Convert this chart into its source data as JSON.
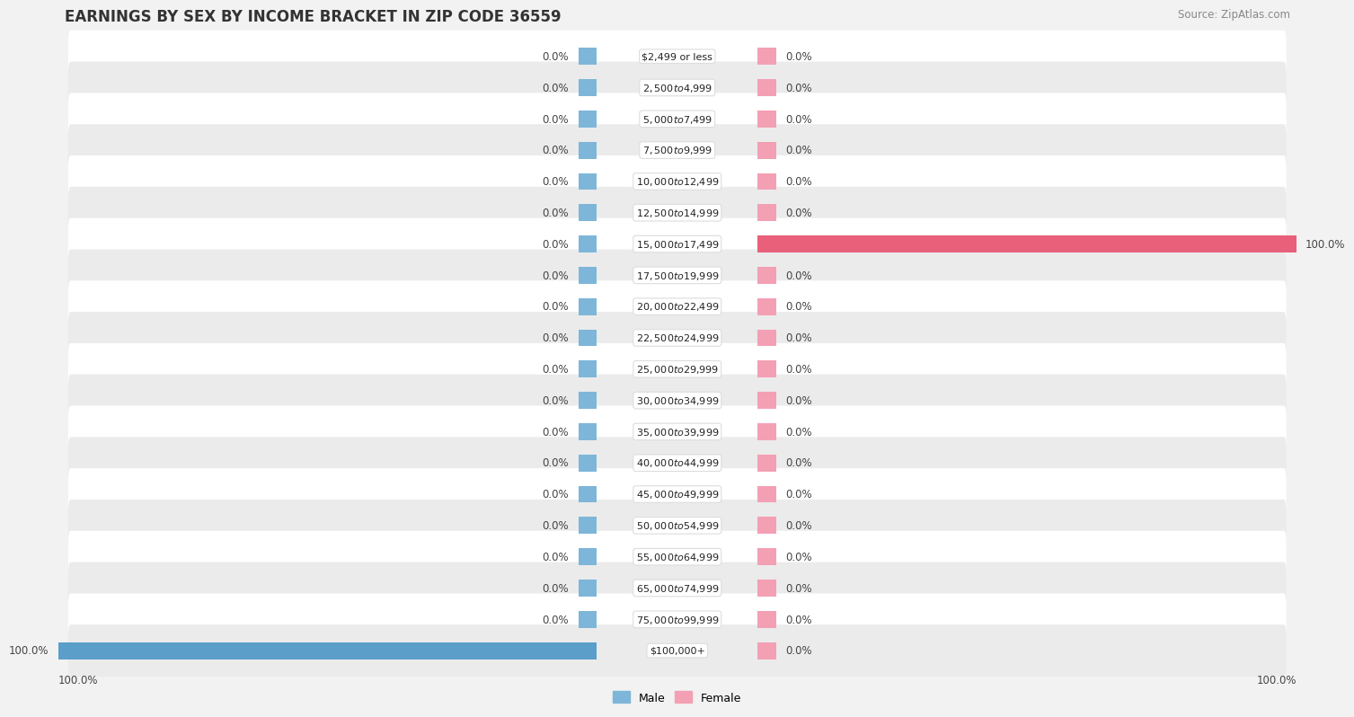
{
  "title": "EARNINGS BY SEX BY INCOME BRACKET IN ZIP CODE 36559",
  "source": "Source: ZipAtlas.com",
  "categories": [
    "$2,499 or less",
    "$2,500 to $4,999",
    "$5,000 to $7,499",
    "$7,500 to $9,999",
    "$10,000 to $12,499",
    "$12,500 to $14,999",
    "$15,000 to $17,499",
    "$17,500 to $19,999",
    "$20,000 to $22,499",
    "$22,500 to $24,999",
    "$25,000 to $29,999",
    "$30,000 to $34,999",
    "$35,000 to $39,999",
    "$40,000 to $44,999",
    "$45,000 to $49,999",
    "$50,000 to $54,999",
    "$55,000 to $64,999",
    "$65,000 to $74,999",
    "$75,000 to $99,999",
    "$100,000+"
  ],
  "male_values": [
    0.0,
    0.0,
    0.0,
    0.0,
    0.0,
    0.0,
    0.0,
    0.0,
    0.0,
    0.0,
    0.0,
    0.0,
    0.0,
    0.0,
    0.0,
    0.0,
    0.0,
    0.0,
    0.0,
    100.0
  ],
  "female_values": [
    0.0,
    0.0,
    0.0,
    0.0,
    0.0,
    0.0,
    100.0,
    0.0,
    0.0,
    0.0,
    0.0,
    0.0,
    0.0,
    0.0,
    0.0,
    0.0,
    0.0,
    0.0,
    0.0,
    0.0
  ],
  "male_color": "#7EB6D9",
  "female_color": "#F4A0B4",
  "male_color_active": "#5B9EC9",
  "female_color_active": "#E8607A",
  "bg_color": "#f2f2f2",
  "row_bg_even": "#ffffff",
  "row_bg_odd": "#ebebeb",
  "axis_max": 100.0,
  "title_fontsize": 12,
  "label_fontsize": 8.5,
  "source_fontsize": 8.5,
  "bar_min_pct": 3.0,
  "stub_pct": 3.0
}
